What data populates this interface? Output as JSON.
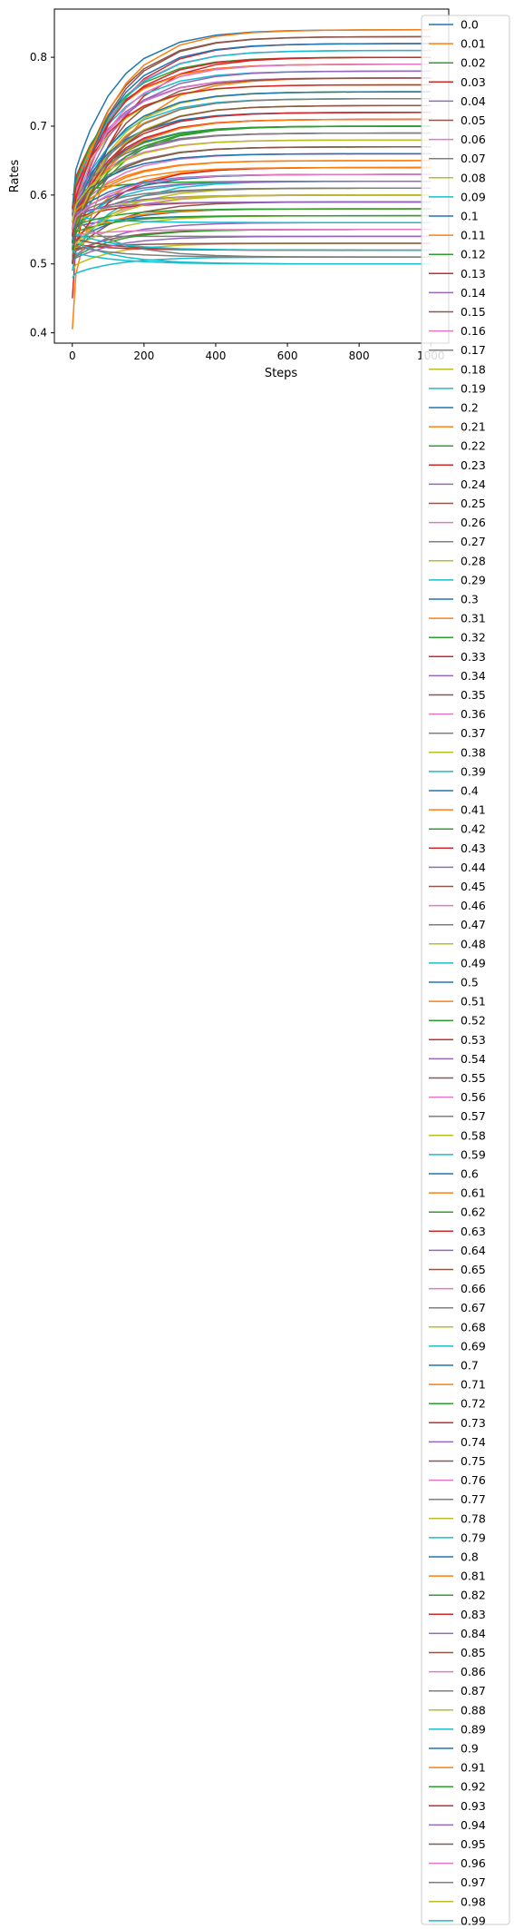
{
  "chart_data": {
    "type": "line",
    "xlabel": "Steps",
    "ylabel": "Rates",
    "xlim": [
      -50,
      1050
    ],
    "ylim": [
      0.385,
      0.87
    ],
    "x_ticks": [
      0,
      200,
      400,
      600,
      800,
      1000
    ],
    "x_tick_labels": [
      "0",
      "200",
      "400",
      "600",
      "800",
      "1000"
    ],
    "y_ticks": [
      0.4,
      0.5,
      0.6,
      0.7,
      0.8
    ],
    "y_tick_labels": [
      "0.4",
      "0.5",
      "0.6",
      "0.7",
      "0.8"
    ],
    "grid": false,
    "legend_placement": "right",
    "colors": [
      "#1f77b4",
      "#ff7f0e",
      "#2ca02c",
      "#d62728",
      "#9467bd",
      "#8c564b",
      "#e377c2",
      "#7f7f7f",
      "#bcbd22",
      "#17becf"
    ],
    "x": [
      0,
      10,
      25,
      50,
      100,
      150,
      200,
      300,
      400,
      500,
      600,
      700,
      800,
      900,
      1000
    ],
    "series_shape": "saturating rise from a start value near 0.5 toward a final value, one curve per series",
    "series": [
      {
        "name": "0.0",
        "start": 0.55,
        "final": 0.57
      },
      {
        "name": "0.01",
        "start": 0.405,
        "final": 0.77
      },
      {
        "name": "0.02",
        "start": 0.6,
        "final": 0.62
      },
      {
        "name": "0.03",
        "start": 0.45,
        "final": 0.8
      },
      {
        "name": "0.04",
        "start": 0.53,
        "final": 0.71
      },
      {
        "name": "0.05",
        "start": 0.51,
        "final": 0.55
      },
      {
        "name": "0.06",
        "start": 0.52,
        "final": 0.6
      },
      {
        "name": "0.07",
        "start": 0.57,
        "final": 0.66
      },
      {
        "name": "0.08",
        "start": 0.5,
        "final": 0.61
      },
      {
        "name": "0.09",
        "start": 0.48,
        "final": 0.51
      },
      {
        "name": "0.1",
        "start": 0.56,
        "final": 0.7
      },
      {
        "name": "0.11",
        "start": 0.52,
        "final": 0.74
      },
      {
        "name": "0.12",
        "start": 0.55,
        "final": 0.67
      },
      {
        "name": "0.13",
        "start": 0.58,
        "final": 0.79
      },
      {
        "name": "0.14",
        "start": 0.5,
        "final": 0.56
      },
      {
        "name": "0.15",
        "start": 0.54,
        "final": 0.83
      },
      {
        "name": "0.16",
        "start": 0.53,
        "final": 0.63
      },
      {
        "name": "0.17",
        "start": 0.55,
        "final": 0.72
      },
      {
        "name": "0.18",
        "start": 0.49,
        "final": 0.53
      },
      {
        "name": "0.19",
        "start": 0.57,
        "final": 0.78
      },
      {
        "name": "0.2",
        "start": 0.52,
        "final": 0.58
      },
      {
        "name": "0.21",
        "start": 0.56,
        "final": 0.65
      },
      {
        "name": "0.22",
        "start": 0.53,
        "final": 0.75
      },
      {
        "name": "0.23",
        "start": 0.5,
        "final": 0.82
      },
      {
        "name": "0.24",
        "start": 0.55,
        "final": 0.6
      },
      {
        "name": "0.25",
        "start": 0.57,
        "final": 0.69
      },
      {
        "name": "0.26",
        "start": 0.51,
        "final": 0.73
      },
      {
        "name": "0.27",
        "start": 0.54,
        "final": 0.54
      },
      {
        "name": "0.28",
        "start": 0.56,
        "final": 0.76
      },
      {
        "name": "0.29",
        "start": 0.49,
        "final": 0.62
      },
      {
        "name": "0.3",
        "start": 0.58,
        "final": 0.84
      },
      {
        "name": "0.31",
        "start": 0.52,
        "final": 0.64
      },
      {
        "name": "0.32",
        "start": 0.55,
        "final": 0.7
      },
      {
        "name": "0.33",
        "start": 0.53,
        "final": 0.52
      },
      {
        "name": "0.34",
        "start": 0.57,
        "final": 0.77
      },
      {
        "name": "0.35",
        "start": 0.5,
        "final": 0.59
      },
      {
        "name": "0.36",
        "start": 0.54,
        "final": 0.81
      },
      {
        "name": "0.37",
        "start": 0.56,
        "final": 0.67
      },
      {
        "name": "0.38",
        "start": 0.51,
        "final": 0.57
      },
      {
        "name": "0.39",
        "start": 0.55,
        "final": 0.74
      },
      {
        "name": "0.4",
        "start": 0.53,
        "final": 0.63
      },
      {
        "name": "0.41",
        "start": 0.57,
        "final": 0.79
      },
      {
        "name": "0.42",
        "start": 0.5,
        "final": 0.55
      },
      {
        "name": "0.43",
        "start": 0.54,
        "final": 0.71
      },
      {
        "name": "0.44",
        "start": 0.56,
        "final": 0.6
      },
      {
        "name": "0.45",
        "start": 0.52,
        "final": 0.83
      },
      {
        "name": "0.46",
        "start": 0.55,
        "final": 0.66
      },
      {
        "name": "0.47",
        "start": 0.58,
        "final": 0.51
      },
      {
        "name": "0.48",
        "start": 0.51,
        "final": 0.75
      },
      {
        "name": "0.49",
        "start": 0.54,
        "final": 0.62
      },
      {
        "name": "0.5",
        "start": 0.56,
        "final": 0.72
      },
      {
        "name": "0.51",
        "start": 0.53,
        "final": 0.58
      },
      {
        "name": "0.52",
        "start": 0.57,
        "final": 0.8
      },
      {
        "name": "0.53",
        "start": 0.5,
        "final": 0.64
      },
      {
        "name": "0.54",
        "start": 0.55,
        "final": 0.69
      },
      {
        "name": "0.55",
        "start": 0.52,
        "final": 0.53
      },
      {
        "name": "0.56",
        "start": 0.56,
        "final": 0.77
      },
      {
        "name": "0.57",
        "start": 0.54,
        "final": 0.61
      },
      {
        "name": "0.58",
        "start": 0.51,
        "final": 0.73
      },
      {
        "name": "0.59",
        "start": 0.57,
        "final": 0.56
      },
      {
        "name": "0.6",
        "start": 0.53,
        "final": 0.82
      },
      {
        "name": "0.61",
        "start": 0.55,
        "final": 0.65
      },
      {
        "name": "0.62",
        "start": 0.5,
        "final": 0.7
      },
      {
        "name": "0.63",
        "start": 0.56,
        "final": 0.59
      },
      {
        "name": "0.64",
        "start": 0.52,
        "final": 0.78
      },
      {
        "name": "0.65",
        "start": 0.54,
        "final": 0.52
      },
      {
        "name": "0.66",
        "start": 0.57,
        "final": 0.68
      },
      {
        "name": "0.67",
        "start": 0.51,
        "final": 0.74
      },
      {
        "name": "0.68",
        "start": 0.55,
        "final": 0.6
      },
      {
        "name": "0.69",
        "start": 0.53,
        "final": 0.81
      },
      {
        "name": "0.7",
        "start": 0.56,
        "final": 0.63
      },
      {
        "name": "0.71",
        "start": 0.52,
        "final": 0.71
      },
      {
        "name": "0.72",
        "start": 0.54,
        "final": 0.57
      },
      {
        "name": "0.73",
        "start": 0.57,
        "final": 0.76
      },
      {
        "name": "0.74",
        "start": 0.5,
        "final": 0.54
      },
      {
        "name": "0.75",
        "start": 0.55,
        "final": 0.67
      },
      {
        "name": "0.76",
        "start": 0.53,
        "final": 0.79
      },
      {
        "name": "0.77",
        "start": 0.56,
        "final": 0.61
      },
      {
        "name": "0.78",
        "start": 0.51,
        "final": 0.73
      },
      {
        "name": "0.79",
        "start": 0.54,
        "final": 0.5
      },
      {
        "name": "0.8",
        "start": 0.57,
        "final": 0.66
      },
      {
        "name": "0.81",
        "start": 0.52,
        "final": 0.84
      },
      {
        "name": "0.82",
        "start": 0.55,
        "final": 0.58
      },
      {
        "name": "0.83",
        "start": 0.53,
        "final": 0.72
      },
      {
        "name": "0.84",
        "start": 0.56,
        "final": 0.62
      },
      {
        "name": "0.85",
        "start": 0.5,
        "final": 0.77
      },
      {
        "name": "0.86",
        "start": 0.54,
        "final": 0.55
      },
      {
        "name": "0.87",
        "start": 0.57,
        "final": 0.69
      },
      {
        "name": "0.88",
        "start": 0.51,
        "final": 0.6
      },
      {
        "name": "0.89",
        "start": 0.55,
        "final": 0.52
      },
      {
        "name": "0.9",
        "start": 0.53,
        "final": 0.75
      },
      {
        "name": "0.91",
        "start": 0.56,
        "final": 0.64
      },
      {
        "name": "0.92",
        "start": 0.52,
        "final": 0.7
      },
      {
        "name": "0.93",
        "start": 0.54,
        "final": 0.8
      },
      {
        "name": "0.94",
        "start": 0.57,
        "final": 0.59
      },
      {
        "name": "0.95",
        "start": 0.5,
        "final": 0.73
      },
      {
        "name": "0.96",
        "start": 0.55,
        "final": 0.63
      },
      {
        "name": "0.97",
        "start": 0.53,
        "final": 0.51
      },
      {
        "name": "0.98",
        "start": 0.56,
        "final": 0.68
      },
      {
        "name": "0.99",
        "start": 0.52,
        "final": 0.5
      }
    ]
  }
}
